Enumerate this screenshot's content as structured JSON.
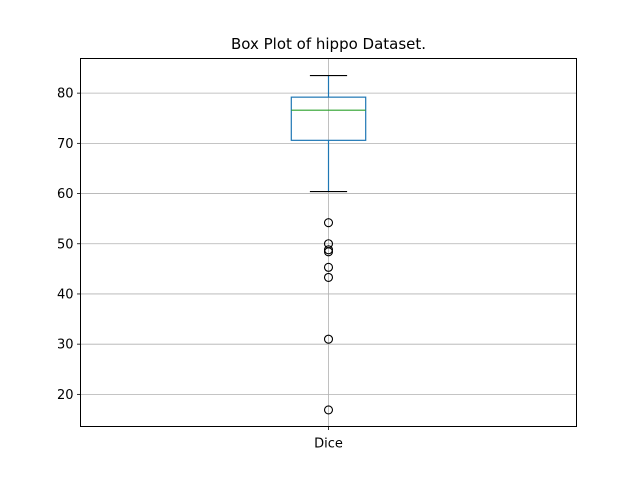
{
  "chart_data": {
    "type": "box",
    "title": "Box Plot of hippo Dataset.",
    "xlabel": "",
    "ylabel": "",
    "categories": [
      "Dice"
    ],
    "ylim": [
      13.6,
      86.9
    ],
    "yticks": [
      20,
      30,
      40,
      50,
      60,
      70,
      80
    ],
    "grid": true,
    "boxes": [
      {
        "category": "Dice",
        "whisker_low": 60.4,
        "q1": 70.6,
        "median": 76.6,
        "q3": 79.2,
        "whisker_high": 83.5,
        "outliers": [
          54.2,
          50.0,
          48.8,
          48.4,
          45.3,
          43.3,
          31.0,
          16.9
        ]
      }
    ],
    "colors": {
      "box": "#1f77b4",
      "median": "#2ca02c",
      "whisker_cap": "#000000",
      "outlier": "#000000",
      "grid": "#b0b0b0",
      "axes": "#000000"
    }
  }
}
